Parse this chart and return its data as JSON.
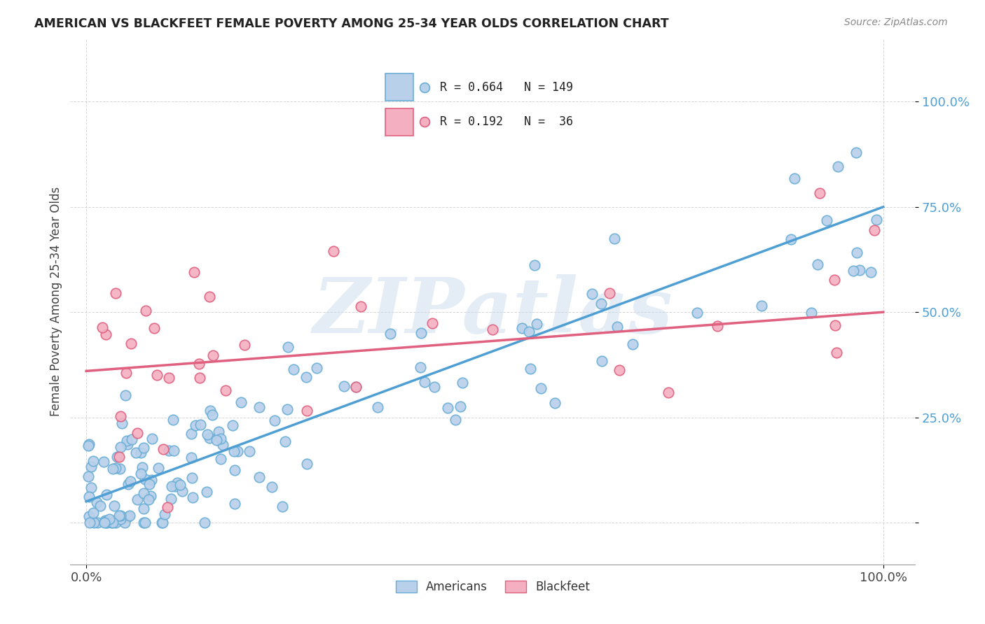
{
  "title": "AMERICAN VS BLACKFEET FEMALE POVERTY AMONG 25-34 YEAR OLDS CORRELATION CHART",
  "source": "Source: ZipAtlas.com",
  "ylabel": "Female Poverty Among 25-34 Year Olds",
  "watermark": "ZIPatlas",
  "americans_color": "#b8d0ea",
  "americans_edge_color": "#6aaed6",
  "americans_line_color": "#4f9fd4",
  "blackfeet_color": "#f4b0c0",
  "blackfeet_edge_color": "#e06080",
  "blackfeet_line_color": "#e06080",
  "R_americans": 0.664,
  "N_americans": 149,
  "R_blackfeet": 0.192,
  "N_blackfeet": 36,
  "am_line_x0": 0.0,
  "am_line_y0": 0.05,
  "am_line_x1": 1.0,
  "am_line_y1": 0.75,
  "bf_line_x0": 0.0,
  "bf_line_y0": 0.36,
  "bf_line_x1": 1.0,
  "bf_line_y1": 0.5,
  "ytick_vals": [
    0.0,
    0.25,
    0.5,
    0.75,
    1.0
  ],
  "ytick_labels": [
    "",
    "25.0%",
    "50.0%",
    "75.0%",
    "100.0%"
  ],
  "xlim": [
    -0.02,
    1.04
  ],
  "ylim": [
    -0.1,
    1.15
  ]
}
